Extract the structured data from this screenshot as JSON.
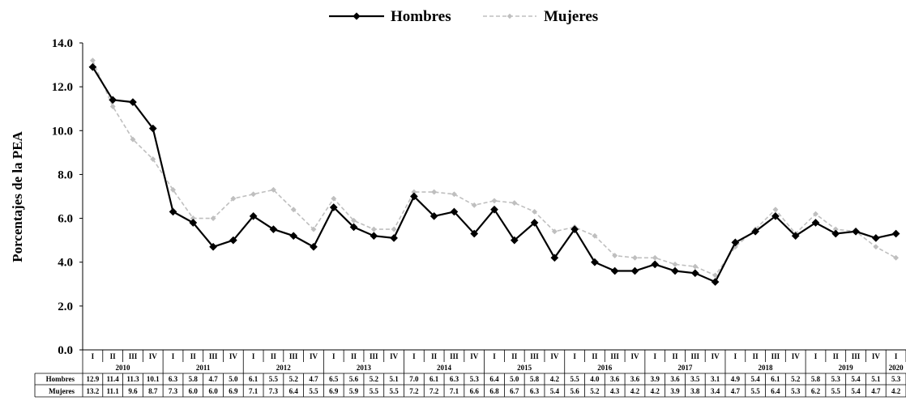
{
  "chart_data": {
    "type": "line",
    "ylabel": "Porcentajes de la PEA",
    "ylim": [
      0,
      14
    ],
    "yticks": [
      "0.0",
      "2.0",
      "4.0",
      "6.0",
      "8.0",
      "10.0",
      "12.0",
      "14.0"
    ],
    "grid": false,
    "legend_position": "top-center",
    "quarters": [
      "I",
      "II",
      "III",
      "IV",
      "I",
      "II",
      "III",
      "IV",
      "I",
      "II",
      "III",
      "IV",
      "I",
      "II",
      "III",
      "IV",
      "I",
      "II",
      "III",
      "IV",
      "I",
      "II",
      "III",
      "IV",
      "I",
      "II",
      "III",
      "IV",
      "I",
      "II",
      "III",
      "IV",
      "I",
      "II",
      "III",
      "IV",
      "I",
      "II",
      "III",
      "IV",
      "I"
    ],
    "years": [
      "2010",
      "2011",
      "2012",
      "2013",
      "2014",
      "2015",
      "2016",
      "2017",
      "2018",
      "2019",
      "2020"
    ],
    "series": [
      {
        "name": "Hombres",
        "color": "#000000",
        "style": "solid",
        "marker": "diamond",
        "values": [
          12.9,
          11.4,
          11.3,
          10.1,
          6.3,
          5.8,
          4.7,
          5.0,
          6.1,
          5.5,
          5.2,
          4.7,
          6.5,
          5.6,
          5.2,
          5.1,
          7.0,
          6.1,
          6.3,
          5.3,
          6.4,
          5.0,
          5.8,
          4.2,
          5.5,
          4.0,
          3.6,
          3.6,
          3.9,
          3.6,
          3.5,
          3.1,
          4.9,
          5.4,
          6.1,
          5.2,
          5.8,
          5.3,
          5.4,
          5.1,
          5.3
        ],
        "labels": [
          "12.9",
          "11.4",
          "11.3",
          "10.1",
          "6.3",
          "5.8",
          "4.7",
          "5.0",
          "6.1",
          "5.5",
          "5.2",
          "4.7",
          "6.5",
          "5.6",
          "5.2",
          "5.1",
          "7.0",
          "6.1",
          "6.3",
          "5.3",
          "6.4",
          "5.0",
          "5.8",
          "4.2",
          "5.5",
          "4.0",
          "3.6",
          "3.6",
          "3.9",
          "3.6",
          "3.5",
          "3.1",
          "4.9",
          "5.4",
          "6.1",
          "5.2",
          "5.8",
          "5.3",
          "5.4",
          "5.1",
          "5.3"
        ]
      },
      {
        "name": "Mujeres",
        "color": "#bfbfbf",
        "style": "dashed",
        "marker": "diamond",
        "values": [
          13.2,
          11.1,
          9.6,
          8.7,
          7.3,
          6.0,
          6.0,
          6.9,
          7.1,
          7.3,
          6.4,
          5.5,
          6.9,
          5.9,
          5.5,
          5.5,
          7.2,
          7.2,
          7.1,
          6.6,
          6.8,
          6.7,
          6.3,
          5.4,
          5.6,
          5.2,
          4.3,
          4.2,
          4.2,
          3.9,
          3.8,
          3.4,
          4.7,
          5.5,
          6.4,
          5.3,
          6.2,
          5.5,
          5.4,
          4.7,
          4.2
        ],
        "labels": [
          "13.2",
          "11.1",
          "9.6",
          "8.7",
          "7.3",
          "6.0",
          "6.0",
          "6.9",
          "7.1",
          "7.3",
          "6.4",
          "5.5",
          "6.9",
          "5.9",
          "5.5",
          "5.5",
          "7.2",
          "7.2",
          "7.1",
          "6.6",
          "6.8",
          "6.7",
          "6.3",
          "5.4",
          "5.6",
          "5.2",
          "4.3",
          "4.2",
          "4.2",
          "3.9",
          "3.8",
          "3.4",
          "4.7",
          "5.5",
          "6.4",
          "5.3",
          "6.2",
          "5.5",
          "5.4",
          "4.7",
          "4.2"
        ]
      }
    ]
  }
}
